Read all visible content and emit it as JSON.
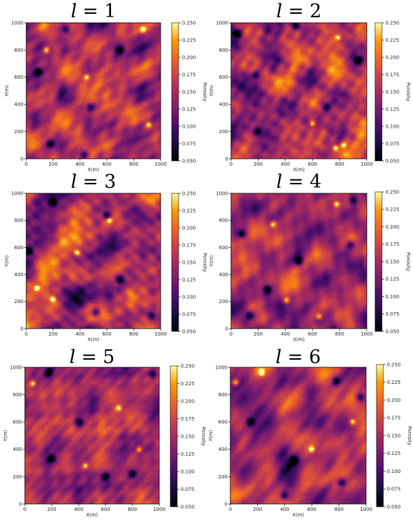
{
  "chart_data": [
    {
      "type": "heatmap",
      "title_var": "l",
      "title_eq": " = ",
      "title_num": "1",
      "xlabel": "X(m)",
      "ylabel": "Y(m)",
      "colorbar_label": "Porosity",
      "xlim": [
        0,
        1000
      ],
      "ylim": [
        0,
        1000
      ],
      "x_ticks": [
        "0",
        "200",
        "400",
        "600",
        "800",
        "1000"
      ],
      "y_ticks": [
        "0",
        "200",
        "400",
        "600",
        "800",
        "1000"
      ],
      "colorbar_range": [
        0.05,
        0.25
      ],
      "colorbar_ticks": [
        "0.050",
        "0.075",
        "0.100",
        "0.125",
        "0.150",
        "0.175",
        "0.200",
        "0.225",
        "0.250"
      ],
      "colormap": "inferno",
      "hotspots": [
        [
          450,
          600
        ],
        [
          910,
          250
        ],
        [
          870,
          950
        ],
        [
          150,
          800
        ]
      ],
      "low_spots": [
        [
          430,
          30
        ],
        [
          180,
          110
        ],
        [
          480,
          380
        ],
        [
          90,
          640
        ],
        [
          300,
          950
        ],
        [
          700,
          800
        ]
      ],
      "seed": 11
    },
    {
      "type": "heatmap",
      "title_var": "l",
      "title_eq": " = ",
      "title_num": "2",
      "xlabel": "X(m)",
      "ylabel": "Y(m)",
      "colorbar_label": "Porosity",
      "xlim": [
        0,
        1000
      ],
      "ylim": [
        0,
        1000
      ],
      "x_ticks": [
        "0",
        "200",
        "400",
        "600",
        "800",
        "1000"
      ],
      "y_ticks": [
        "0",
        "200",
        "400",
        "600",
        "800",
        "1000"
      ],
      "colorbar_range": [
        0.05,
        0.25
      ],
      "colorbar_ticks": [
        "0.050",
        "0.075",
        "0.100",
        "0.125",
        "0.150",
        "0.175",
        "0.200",
        "0.225",
        "0.250"
      ],
      "colormap": "inferno",
      "hotspots": [
        [
          770,
          80
        ],
        [
          830,
          100
        ],
        [
          790,
          890
        ],
        [
          600,
          260
        ]
      ],
      "low_spots": [
        [
          930,
          720
        ],
        [
          40,
          920
        ],
        [
          480,
          980
        ],
        [
          180,
          620
        ],
        [
          200,
          200
        ],
        [
          700,
          380
        ]
      ],
      "seed": 23
    },
    {
      "type": "heatmap",
      "title_var": "l",
      "title_eq": " = ",
      "title_num": "3",
      "xlabel": "X(m)",
      "ylabel": "Y(m)",
      "colorbar_label": "Porosity",
      "xlim": [
        0,
        1000
      ],
      "ylim": [
        0,
        1000
      ],
      "x_ticks": [
        "0",
        "200",
        "400",
        "600",
        "800",
        "1000"
      ],
      "y_ticks": [
        "0",
        "200",
        "400",
        "600",
        "800",
        "1000"
      ],
      "colorbar_range": [
        0.05,
        0.25
      ],
      "colorbar_ticks": [
        "0.050",
        "0.075",
        "0.100",
        "0.125",
        "0.150",
        "0.175",
        "0.200",
        "0.225",
        "0.250"
      ],
      "colormap": "inferno",
      "hotspots": [
        [
          620,
          800
        ],
        [
          380,
          560
        ],
        [
          200,
          220
        ],
        [
          80,
          300
        ]
      ],
      "low_spots": [
        [
          930,
          100
        ],
        [
          20,
          570
        ],
        [
          600,
          840
        ],
        [
          200,
          930
        ],
        [
          700,
          360
        ],
        [
          520,
          120
        ]
      ],
      "seed": 37
    },
    {
      "type": "heatmap",
      "title_var": "l",
      "title_eq": " = ",
      "title_num": "4",
      "xlabel": "X(m)",
      "ylabel": "Y(m)",
      "colorbar_label": "Porosity",
      "xlim": [
        0,
        1000
      ],
      "ylim": [
        0,
        1000
      ],
      "x_ticks": [
        "0",
        "200",
        "400",
        "600",
        "800",
        "1000"
      ],
      "y_ticks": [
        "0",
        "200",
        "400",
        "600",
        "800",
        "1000"
      ],
      "colorbar_range": [
        0.05,
        0.25
      ],
      "colorbar_ticks": [
        "0.050",
        "0.075",
        "0.100",
        "0.125",
        "0.150",
        "0.175",
        "0.200",
        "0.225",
        "0.250"
      ],
      "colormap": "inferno",
      "hotspots": [
        [
          310,
          770
        ],
        [
          650,
          90
        ],
        [
          410,
          210
        ],
        [
          780,
          920
        ]
      ],
      "low_spots": [
        [
          270,
          290
        ],
        [
          80,
          700
        ],
        [
          880,
          620
        ],
        [
          500,
          500
        ],
        [
          140,
          100
        ],
        [
          900,
          950
        ]
      ],
      "seed": 53
    },
    {
      "type": "heatmap",
      "title_var": "l",
      "title_eq": " = ",
      "title_num": "5",
      "xlabel": "X(m)",
      "ylabel": "Y(m)",
      "colorbar_label": "Porosity",
      "xlim": [
        0,
        1000
      ],
      "ylim": [
        0,
        1000
      ],
      "x_ticks": [
        "0",
        "200",
        "400",
        "600",
        "800",
        "1000"
      ],
      "y_ticks": [
        "0",
        "200",
        "400",
        "600",
        "800",
        "1000"
      ],
      "colorbar_range": [
        0.05,
        0.25
      ],
      "colorbar_ticks": [
        "0.050",
        "0.075",
        "0.100",
        "0.125",
        "0.150",
        "0.175",
        "0.200",
        "0.225",
        "0.250"
      ],
      "colormap": "inferno",
      "hotspots": [
        [
          450,
          280
        ],
        [
          60,
          880
        ],
        [
          700,
          700
        ],
        [
          850,
          400
        ]
      ],
      "low_spots": [
        [
          180,
          960
        ],
        [
          200,
          330
        ],
        [
          600,
          200
        ],
        [
          800,
          220
        ],
        [
          400,
          600
        ],
        [
          950,
          950
        ]
      ],
      "seed": 71
    },
    {
      "type": "heatmap",
      "title_var": "l",
      "title_eq": " = ",
      "title_num": "6",
      "xlabel": "X(m)",
      "ylabel": "Y(m)",
      "colorbar_label": "Porosity",
      "xlim": [
        0,
        1000
      ],
      "ylim": [
        0,
        1000
      ],
      "x_ticks": [
        "0",
        "200",
        "400",
        "600",
        "800",
        "1000"
      ],
      "y_ticks": [
        "0",
        "200",
        "400",
        "600",
        "800",
        "1000"
      ],
      "colorbar_range": [
        0.05,
        0.25
      ],
      "colorbar_ticks": [
        "0.050",
        "0.075",
        "0.100",
        "0.125",
        "0.150",
        "0.175",
        "0.200",
        "0.225",
        "0.250"
      ],
      "colormap": "inferno",
      "hotspots": [
        [
          230,
          960
        ],
        [
          40,
          890
        ],
        [
          600,
          400
        ],
        [
          900,
          600
        ]
      ],
      "low_spots": [
        [
          470,
          320
        ],
        [
          820,
          160
        ],
        [
          780,
          900
        ],
        [
          150,
          600
        ],
        [
          960,
          780
        ],
        [
          400,
          60
        ]
      ],
      "seed": 89
    }
  ]
}
